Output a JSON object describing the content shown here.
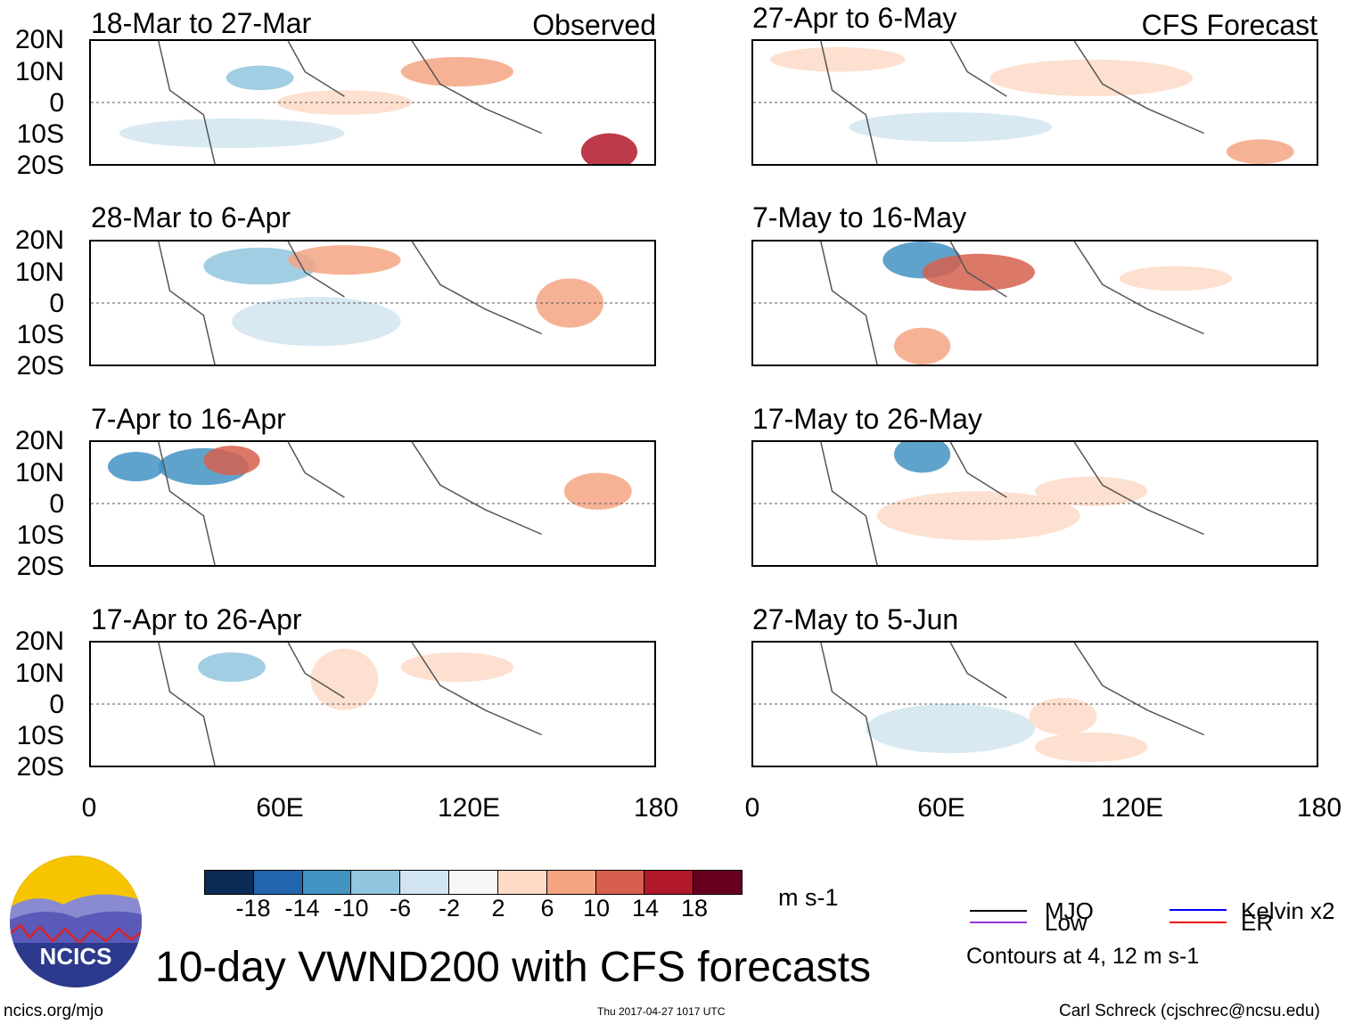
{
  "panels_left": [
    {
      "title": "18-Mar to 27-Mar",
      "label": "Observed"
    },
    {
      "title": "28-Mar to 6-Apr",
      "label": ""
    },
    {
      "title": "7-Apr to 16-Apr",
      "label": ""
    },
    {
      "title": "17-Apr to 26-Apr",
      "label": ""
    }
  ],
  "panels_right": [
    {
      "title": "27-Apr to 6-May",
      "label": "CFS Forecast"
    },
    {
      "title": "7-May to 16-May",
      "label": ""
    },
    {
      "title": "17-May to 26-May",
      "label": ""
    },
    {
      "title": "27-May to 5-Jun",
      "label": ""
    }
  ],
  "lat_labels": [
    "20N",
    "10N",
    "0",
    "10S",
    "20S"
  ],
  "lon_labels": [
    "0",
    "60E",
    "120E",
    "180"
  ],
  "colorbar": {
    "colors": [
      "#0b2a55",
      "#2166ac",
      "#4393c3",
      "#92c5de",
      "#d1e5f0",
      "#f7f7f7",
      "#fddbc7",
      "#f4a582",
      "#d6604d",
      "#b2182b",
      "#67001f"
    ],
    "ticks": [
      "-18",
      "-14",
      "-10",
      "-6",
      "-2",
      "2",
      "6",
      "10",
      "14",
      "18"
    ],
    "units": "m s-1"
  },
  "legend": {
    "mjo": {
      "label": "MJO",
      "color": "#000000"
    },
    "kelvin": {
      "label": "Kelvin x2",
      "color": "#0000ff"
    },
    "low": {
      "label": "Low",
      "color": "#9933cc"
    },
    "er": {
      "label": "ER",
      "color": "#ee0000"
    },
    "note": "Contours at 4, 12 m s-1"
  },
  "title": "10-day VWND200 with CFS forecasts",
  "logo_text": "NCICS",
  "footer": {
    "left": "ncics.org/mjo",
    "center": "Thu 2017-04-27 1017 UTC",
    "right": "Carl Schreck (cjschrec@ncsu.edu)"
  }
}
